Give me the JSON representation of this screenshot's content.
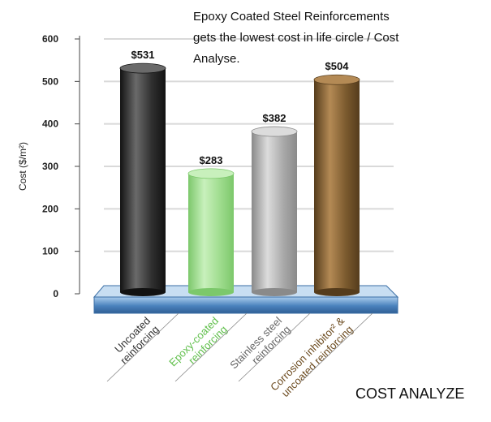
{
  "title_lines": [
    "Epoxy Coated Steel Reinforcements",
    "gets the lowest cost in life circle / Cost",
    "Analyse."
  ],
  "footer_label": "COST ANALYZE",
  "chart_data": {
    "type": "bar",
    "categories": [
      [
        "Uncoated",
        "reinforcing"
      ],
      [
        "Epoxy-coated",
        "reinforcing"
      ],
      [
        "Stainless steel",
        "reinforcing"
      ],
      [
        "Corrosion inhibitor² &",
        "uncoated reinforcing"
      ]
    ],
    "values": [
      531,
      283,
      382,
      504
    ],
    "value_labels": [
      "$531",
      "$283",
      "$382",
      "$504"
    ],
    "ylabel": "Cost ($/m²)",
    "ylim": [
      0,
      600
    ],
    "yticks": [
      0,
      100,
      200,
      300,
      400,
      500,
      600
    ],
    "grid": true,
    "colors": {
      "bars": [
        "#2f2f2f",
        "#9fdc8e",
        "#a9a9a9",
        "#7b5a2e"
      ],
      "bar_light": [
        "#6a6a6a",
        "#c8f0bc",
        "#dcdcdc",
        "#b48a55"
      ],
      "bar_dark": [
        "#121212",
        "#7cc86b",
        "#8a8a8a",
        "#553c1c"
      ],
      "category_text": [
        "#333333",
        "#5fbf4a",
        "#666666",
        "#6b4a1e"
      ],
      "platform": "#4a82bd",
      "platform_light": "#a9cbec"
    }
  }
}
